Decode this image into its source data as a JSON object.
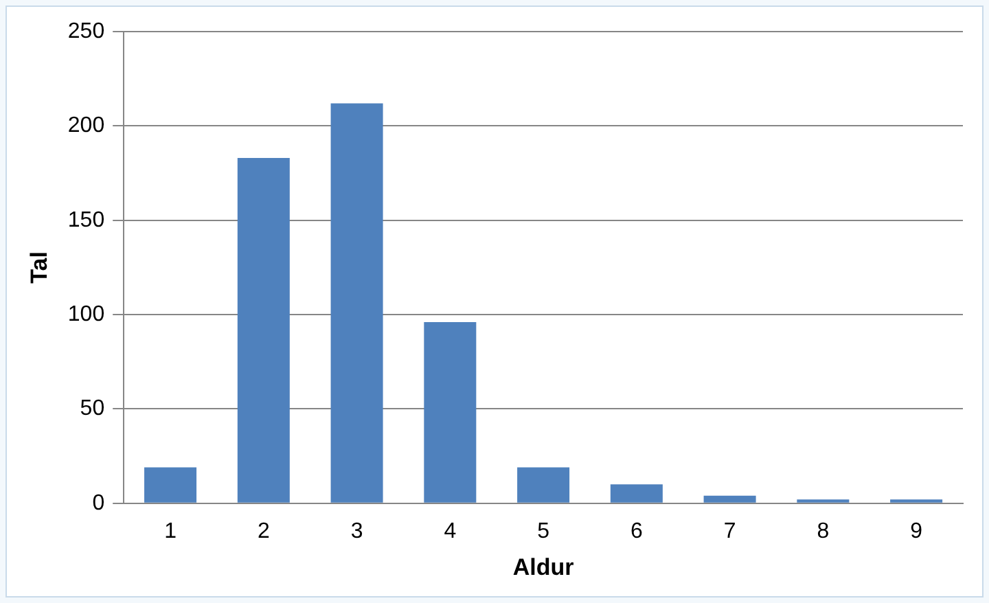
{
  "chart_data": {
    "type": "bar",
    "xlabel": "Aldur",
    "ylabel": "Tal",
    "categories": [
      "1",
      "2",
      "3",
      "4",
      "5",
      "6",
      "7",
      "8",
      "9"
    ],
    "values": [
      19,
      183,
      212,
      96,
      19,
      10,
      4,
      2,
      2
    ],
    "color": "#4f81bd",
    "ylim": [
      0,
      250
    ],
    "yticks": [
      0,
      50,
      100,
      150,
      200,
      250
    ],
    "grid": "y",
    "legend": false
  }
}
